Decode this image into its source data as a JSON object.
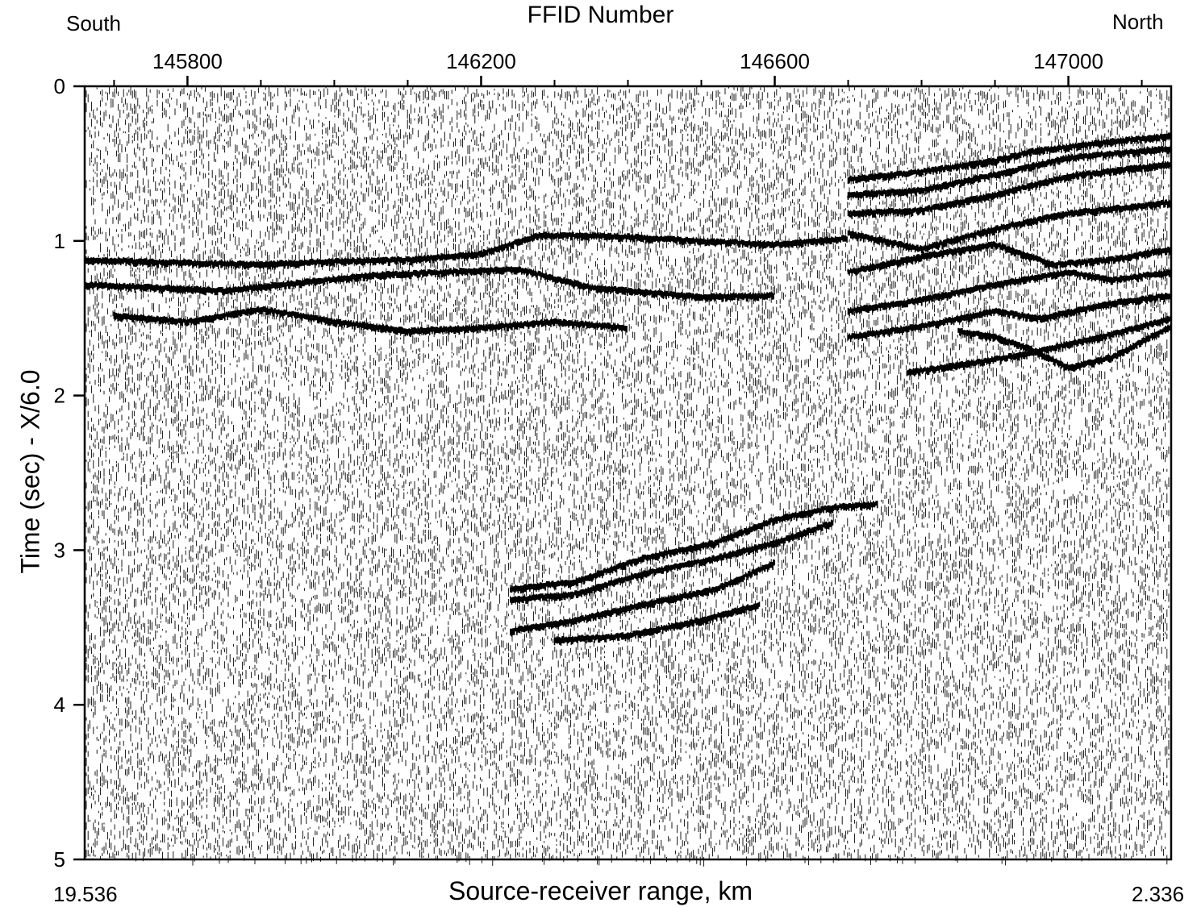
{
  "chart_data": {
    "type": "seismic-wiggle-section",
    "top_axis": {
      "title": "FFID Number",
      "left_annotation": "South",
      "right_annotation": "North",
      "range": [
        145660,
        147140
      ],
      "major_ticks": [
        145800,
        146200,
        146600,
        147000
      ],
      "minor_ticks": [
        145700,
        145900,
        146000,
        146100,
        146300,
        146400,
        146500,
        146700,
        146800,
        146900,
        147100
      ]
    },
    "y_axis": {
      "label": "Time (sec) - X/6.0",
      "range": [
        0,
        5
      ],
      "ticks": [
        0,
        1,
        2,
        3,
        4,
        5
      ],
      "reversed": true
    },
    "bottom_axis": {
      "title": "Source-receiver range, km",
      "left_value": "19.536",
      "right_value": "2.336"
    },
    "reflection_events": [
      {
        "name": "",
        "points": [
          [
            145660,
            1.12
          ],
          [
            145800,
            1.14
          ],
          [
            145900,
            1.15
          ],
          [
            146000,
            1.13
          ],
          [
            146100,
            1.12
          ],
          [
            146200,
            1.08
          ],
          [
            146280,
            0.96
          ],
          [
            146400,
            0.97
          ],
          [
            146500,
            1.0
          ],
          [
            146600,
            1.02
          ],
          [
            146700,
            0.98
          ]
        ]
      },
      {
        "name": "",
        "points": [
          [
            145660,
            1.28
          ],
          [
            145760,
            1.3
          ],
          [
            145850,
            1.32
          ],
          [
            145950,
            1.27
          ],
          [
            146050,
            1.22
          ],
          [
            146150,
            1.2
          ],
          [
            146250,
            1.18
          ],
          [
            146350,
            1.3
          ],
          [
            146500,
            1.36
          ],
          [
            146600,
            1.35
          ]
        ]
      },
      {
        "name": "",
        "points": [
          [
            145700,
            1.48
          ],
          [
            145800,
            1.52
          ],
          [
            145900,
            1.44
          ],
          [
            146000,
            1.52
          ],
          [
            146100,
            1.58
          ],
          [
            146200,
            1.56
          ],
          [
            146300,
            1.52
          ],
          [
            146400,
            1.56
          ]
        ]
      },
      {
        "name": "",
        "points": [
          [
            146700,
            0.6
          ],
          [
            146800,
            0.55
          ],
          [
            146900,
            0.48
          ],
          [
            146950,
            0.42
          ],
          [
            147050,
            0.36
          ],
          [
            147140,
            0.32
          ]
        ]
      },
      {
        "name": "",
        "points": [
          [
            146700,
            0.7
          ],
          [
            146800,
            0.67
          ],
          [
            146900,
            0.57
          ],
          [
            147000,
            0.46
          ],
          [
            147140,
            0.4
          ]
        ]
      },
      {
        "name": "",
        "points": [
          [
            146700,
            0.82
          ],
          [
            146800,
            0.8
          ],
          [
            146900,
            0.7
          ],
          [
            147000,
            0.58
          ],
          [
            147140,
            0.5
          ]
        ]
      },
      {
        "name": "",
        "points": [
          [
            146700,
            0.95
          ],
          [
            146800,
            1.05
          ],
          [
            146900,
            0.92
          ],
          [
            147000,
            0.82
          ],
          [
            147140,
            0.75
          ]
        ]
      },
      {
        "name": "",
        "points": [
          [
            146700,
            1.2
          ],
          [
            146800,
            1.1
          ],
          [
            146900,
            1.02
          ],
          [
            146980,
            1.15
          ],
          [
            147060,
            1.12
          ],
          [
            147140,
            1.05
          ]
        ]
      },
      {
        "name": "",
        "points": [
          [
            146700,
            1.45
          ],
          [
            146800,
            1.38
          ],
          [
            146900,
            1.28
          ],
          [
            147000,
            1.2
          ],
          [
            147060,
            1.25
          ],
          [
            147140,
            1.2
          ]
        ]
      },
      {
        "name": "",
        "points": [
          [
            146700,
            1.62
          ],
          [
            146800,
            1.55
          ],
          [
            146900,
            1.45
          ],
          [
            146960,
            1.5
          ],
          [
            147060,
            1.4
          ],
          [
            147140,
            1.35
          ]
        ]
      },
      {
        "name": "",
        "points": [
          [
            146850,
            1.58
          ],
          [
            146900,
            1.62
          ],
          [
            146950,
            1.7
          ],
          [
            147000,
            1.82
          ],
          [
            147060,
            1.75
          ],
          [
            147140,
            1.55
          ]
        ]
      },
      {
        "name": "",
        "points": [
          [
            146780,
            1.85
          ],
          [
            146880,
            1.78
          ],
          [
            146950,
            1.72
          ],
          [
            147060,
            1.6
          ],
          [
            147140,
            1.5
          ]
        ]
      },
      {
        "name": "",
        "points": [
          [
            146240,
            3.25
          ],
          [
            146330,
            3.2
          ],
          [
            146420,
            3.05
          ],
          [
            146520,
            2.95
          ],
          [
            146600,
            2.8
          ],
          [
            146680,
            2.72
          ],
          [
            146740,
            2.7
          ]
        ]
      },
      {
        "name": "",
        "points": [
          [
            146240,
            3.32
          ],
          [
            146330,
            3.28
          ],
          [
            146420,
            3.15
          ],
          [
            146520,
            3.05
          ],
          [
            146600,
            2.95
          ],
          [
            146680,
            2.82
          ]
        ]
      },
      {
        "name": "",
        "points": [
          [
            146240,
            3.52
          ],
          [
            146330,
            3.45
          ],
          [
            146420,
            3.35
          ],
          [
            146520,
            3.25
          ],
          [
            146600,
            3.08
          ]
        ]
      },
      {
        "name": "",
        "points": [
          [
            146300,
            3.58
          ],
          [
            146400,
            3.55
          ],
          [
            146500,
            3.45
          ],
          [
            146580,
            3.35
          ]
        ]
      }
    ]
  }
}
